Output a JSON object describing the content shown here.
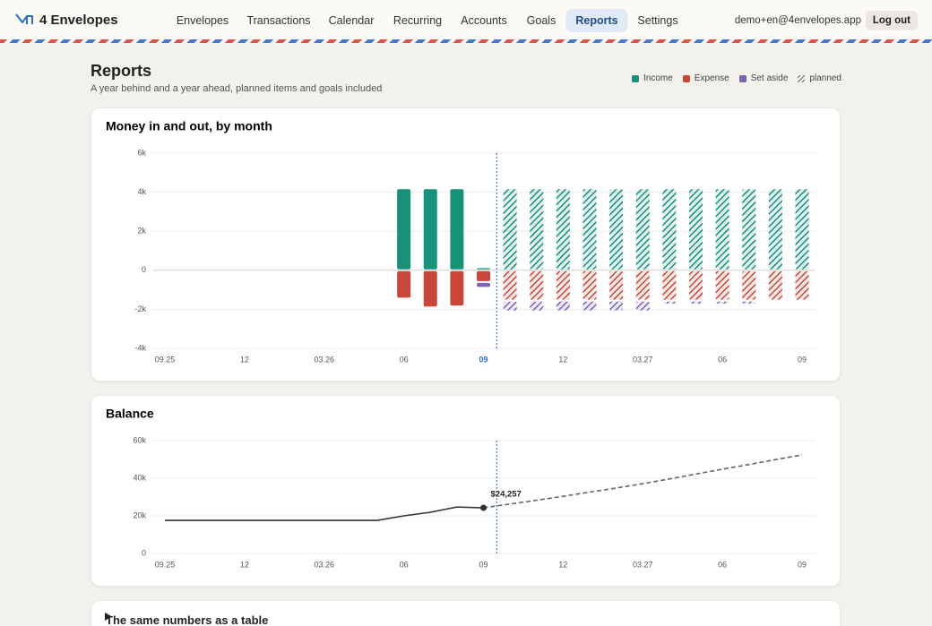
{
  "nav": {
    "brand": "4 Envelopes",
    "links": [
      "Envelopes",
      "Transactions",
      "Calendar",
      "Recurring",
      "Accounts",
      "Goals",
      "Reports",
      "Settings"
    ],
    "active": "Reports",
    "email": "demo+en@4envelopes.app",
    "logout": "Log out"
  },
  "header": {
    "title": "Reports",
    "subtitle": "A year behind and a year ahead, planned items and goals included"
  },
  "chart_data": [
    {
      "type": "bar",
      "title": "Money in and out, by month",
      "categories": [
        "09.25",
        null,
        null,
        "12",
        null,
        null,
        "03.26",
        null,
        null,
        "06",
        null,
        null,
        "09",
        null,
        null,
        "12",
        null,
        null,
        "03.27",
        null,
        null,
        "06",
        null,
        null,
        "09"
      ],
      "planned": [
        false,
        false,
        false,
        false,
        false,
        false,
        false,
        false,
        false,
        false,
        false,
        false,
        false,
        true,
        true,
        true,
        true,
        true,
        true,
        true,
        true,
        true,
        true,
        true,
        true
      ],
      "planned_label": "planned",
      "highlight_current": true,
      "series": [
        {
          "name": "Income",
          "color": "#16917a",
          "values": [
            null,
            null,
            null,
            null,
            null,
            null,
            null,
            null,
            null,
            4200,
            4200,
            4200,
            150,
            4200,
            4200,
            4200,
            4200,
            4200,
            4200,
            4200,
            4200,
            4200,
            4200,
            4200,
            4200
          ]
        },
        {
          "name": "Expense",
          "color": "#c9473a",
          "values": [
            null,
            null,
            null,
            null,
            null,
            null,
            null,
            null,
            null,
            -1450,
            -1900,
            -1850,
            -600,
            -1550,
            -1550,
            -1550,
            -1550,
            -1550,
            -1550,
            -1550,
            -1550,
            -1550,
            -1550,
            -1550,
            -1550
          ]
        },
        {
          "name": "Set aside",
          "color": "#7e62b8",
          "values": [
            null,
            null,
            null,
            null,
            null,
            null,
            null,
            null,
            null,
            null,
            null,
            null,
            -300,
            -550,
            -550,
            -550,
            -550,
            -550,
            -550,
            -200,
            -200,
            -200,
            -200,
            null,
            null
          ]
        }
      ],
      "ylim": [
        -4000,
        6000
      ],
      "yticks": [
        {
          "value": -4000,
          "label": "-4k"
        },
        {
          "value": -2000,
          "label": "-2k"
        },
        0,
        {
          "value": 2000,
          "label": "2k"
        },
        {
          "value": 4000,
          "label": "4k"
        },
        {
          "value": 6000,
          "label": "6k"
        }
      ],
      "grid": true
    },
    {
      "type": "line",
      "title": "Balance",
      "categories": [
        "09.25",
        null,
        null,
        "12",
        null,
        null,
        "03.26",
        null,
        null,
        "06",
        null,
        null,
        "09",
        null,
        null,
        "12",
        null,
        null,
        "03.27",
        null,
        null,
        "06",
        null,
        null,
        "09"
      ],
      "planned": [
        false,
        false,
        false,
        false,
        false,
        false,
        false,
        false,
        false,
        false,
        false,
        false,
        false,
        true,
        true,
        true,
        true,
        true,
        true,
        true,
        true,
        true,
        true,
        true,
        true
      ],
      "color": "#333333",
      "values": [
        17600,
        17600,
        17600,
        17600,
        17600,
        17600,
        17600,
        17600,
        17600,
        20000,
        21900,
        24700,
        24257,
        26300,
        28300,
        30400,
        32600,
        34800,
        37100,
        39600,
        42200,
        44800,
        47300,
        49900,
        52400
      ],
      "value_labels": [
        null,
        null,
        null,
        null,
        null,
        null,
        null,
        null,
        null,
        null,
        null,
        null,
        "$24,257",
        null,
        null,
        null,
        null,
        null,
        null,
        null,
        null,
        null,
        null,
        null,
        null
      ],
      "ylim": [
        0,
        60000
      ],
      "yticks": [
        0,
        {
          "value": 20000,
          "label": "20k"
        },
        {
          "value": 40000,
          "label": "40k"
        },
        {
          "value": 60000,
          "label": "60k"
        }
      ],
      "grid": true
    }
  ],
  "table_section": {
    "summary": "The same numbers as a table"
  }
}
